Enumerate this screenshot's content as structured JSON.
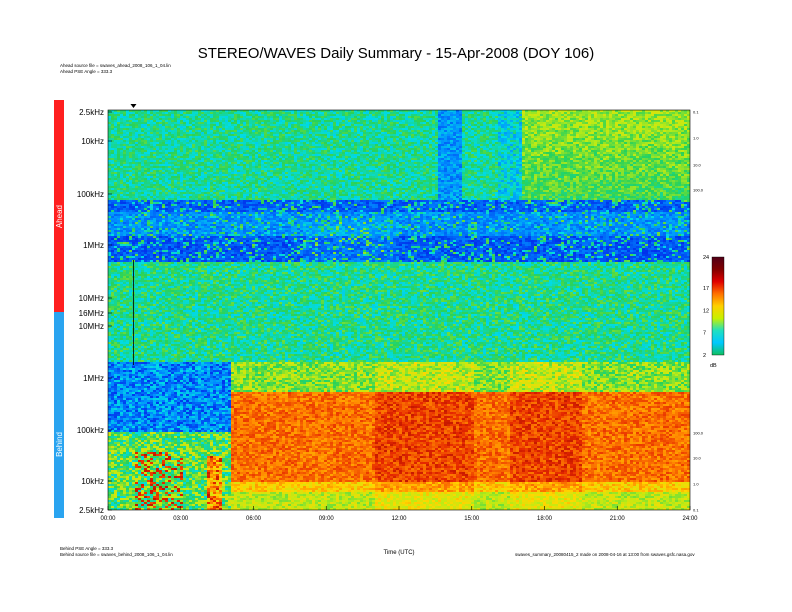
{
  "header": {
    "title": "STEREO/WAVES Daily Summary - 15-Apr-2008 (DOY 106)",
    "ahead_source": "Ahead source file = swaves_ahead_2008_106_1_04.lin",
    "ahead_pse": "Ahead PSE Angle = 333.3",
    "behind_pse": "Behind PSE Angle = 333.3",
    "behind_source": "Behind source file = swaves_behind_2008_106_1_04.lin",
    "footer_right": "swaves_summary_20080415_2 made on 2008-04-16 at 13:00 from swaves.gsfc.nasa.gov"
  },
  "chart_data": {
    "type": "heatmap",
    "title": "STEREO/WAVES Daily Summary - 15-Apr-2008 (DOY 106)",
    "xlabel": "Time (UTC)",
    "x_range_hours": [
      0,
      24
    ],
    "x_ticks": [
      "00:00",
      "03:00",
      "06:00",
      "09:00",
      "12:00",
      "15:00",
      "18:00",
      "21:00",
      "24:00"
    ],
    "panels": [
      {
        "name": "Ahead",
        "color": "#ff2020",
        "y_scale": "log",
        "y_ticks_top_to_bottom": [
          "2.5kHz",
          "10kHz",
          "100kHz",
          "1MHz",
          "10MHz",
          "16MHz"
        ],
        "right_ticks_top_to_bottom": [
          "0.1",
          "1.0",
          "10.0",
          "100.0"
        ]
      },
      {
        "name": "Behind",
        "color": "#2aa4f0",
        "y_scale": "log",
        "y_ticks_top_to_bottom": [
          "16MHz",
          "10MHz",
          "1MHz",
          "100kHz",
          "10kHz",
          "2.5kHz"
        ],
        "right_ticks_top_to_bottom": [
          "100.0",
          "10.0",
          "1.0",
          "0.1"
        ]
      }
    ],
    "colorbar": {
      "unit": "dB",
      "range": [
        2,
        24
      ],
      "ticks": [
        "24",
        "17",
        "12",
        "7",
        "2"
      ],
      "colors": [
        "#10c060",
        "#00c8ff",
        "#20e0c0",
        "#c8f000",
        "#ffd000",
        "#ff7000",
        "#e00000",
        "#800000",
        "#500018"
      ]
    },
    "features": [
      {
        "panel": "Behind",
        "description_hours": [
          5.0,
          24.0
        ],
        "level": "high (orange)",
        "freq_band": "2.5kHz-200kHz"
      },
      {
        "panel": "Ahead",
        "description_hours": [
          17.0,
          24.0
        ],
        "level": "moderate (yellow-green)",
        "freq_band": "2.5kHz-100kHz"
      }
    ],
    "legend": "none",
    "grid": false
  }
}
